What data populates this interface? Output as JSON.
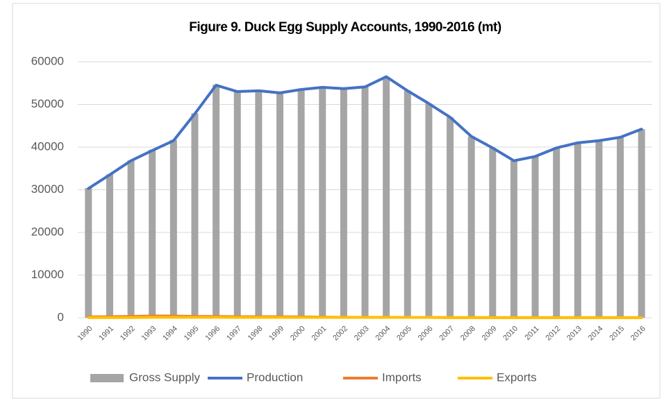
{
  "chart_data": {
    "type": "bar",
    "title": "Figure 9. Duck Egg Supply Accounts, 1990-2016 (mt)",
    "categories": [
      "1990",
      "1991",
      "1992",
      "1993",
      "1994",
      "1995",
      "1996",
      "1997",
      "1998",
      "1999",
      "2000",
      "2001",
      "2002",
      "2003",
      "2004",
      "2005",
      "2006",
      "2007",
      "2008",
      "2009",
      "2010",
      "2011",
      "2012",
      "2013",
      "2014",
      "2015",
      "2016"
    ],
    "series": [
      {
        "name": "Gross Supply",
        "type": "bar",
        "color": "#a5a5a5",
        "values": [
          30400,
          33600,
          36900,
          39400,
          41700,
          47900,
          54600,
          53100,
          53300,
          52800,
          53600,
          54000,
          53700,
          54100,
          56400,
          53200,
          50200,
          47000,
          42500,
          39800,
          36800,
          37800,
          39800,
          41000,
          41500,
          42300,
          44200
        ]
      },
      {
        "name": "Production",
        "type": "line",
        "color": "#4472c4",
        "values": [
          30300,
          33500,
          36800,
          39200,
          41500,
          47800,
          54500,
          53000,
          53200,
          52700,
          53500,
          54000,
          53700,
          54100,
          56500,
          53200,
          50200,
          47000,
          42500,
          39800,
          36800,
          37800,
          39800,
          41000,
          41500,
          42300,
          44200
        ]
      },
      {
        "name": "Imports",
        "type": "line",
        "color": "#ed7d31",
        "values": [
          200,
          250,
          300,
          400,
          400,
          300,
          300,
          250,
          250,
          250,
          200,
          150,
          100,
          100,
          100,
          80,
          80,
          50,
          50,
          50,
          50,
          50,
          50,
          50,
          50,
          50,
          50
        ]
      },
      {
        "name": "Exports",
        "type": "line",
        "color": "#ffc000",
        "values": [
          50,
          50,
          50,
          100,
          100,
          100,
          100,
          80,
          80,
          80,
          80,
          80,
          80,
          80,
          80,
          80,
          80,
          50,
          50,
          50,
          30,
          30,
          30,
          30,
          30,
          30,
          30
        ]
      }
    ],
    "ylim": [
      0,
      60000
    ],
    "yticks": [
      0,
      10000,
      20000,
      30000,
      40000,
      50000,
      60000
    ],
    "grid": true,
    "legend": "bottom"
  }
}
